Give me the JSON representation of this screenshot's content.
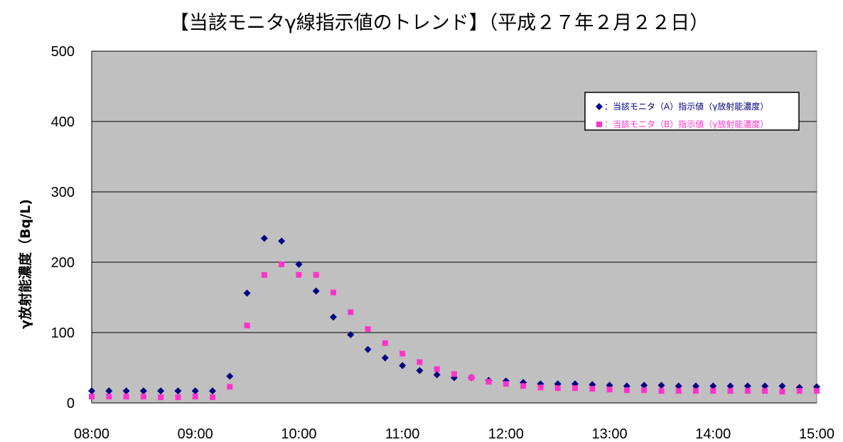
{
  "chart_data": {
    "type": "scatter",
    "title": "【当該モニタγ線指示値のトレンド】（平成２７年２月２２日）",
    "xlabel": "",
    "ylabel": "γ放射能濃度（Bq/L)",
    "ylim": [
      0,
      500
    ],
    "yticks": [
      0,
      100,
      200,
      300,
      400,
      500
    ],
    "xlim": [
      "08:00",
      "15:00"
    ],
    "xticks": [
      "08:00",
      "09:00",
      "10:00",
      "11:00",
      "12:00",
      "13:00",
      "14:00",
      "15:00"
    ],
    "grid": "horizontal",
    "legend_position": "top-right",
    "background": "#c0c0c0",
    "x": [
      "08:00",
      "08:10",
      "08:20",
      "08:30",
      "08:40",
      "08:50",
      "09:00",
      "09:10",
      "09:20",
      "09:30",
      "09:40",
      "09:50",
      "10:00",
      "10:10",
      "10:20",
      "10:30",
      "10:40",
      "10:50",
      "11:00",
      "11:10",
      "11:20",
      "11:30",
      "11:40",
      "11:50",
      "12:00",
      "12:10",
      "12:20",
      "12:30",
      "12:40",
      "12:50",
      "13:00",
      "13:10",
      "13:20",
      "13:30",
      "13:40",
      "13:50",
      "14:00",
      "14:10",
      "14:20",
      "14:30",
      "14:40",
      "14:50",
      "15:00"
    ],
    "series": [
      {
        "name": "：当該モニタ（A）指示値（γ放射能濃度）",
        "marker": "diamond",
        "color": "#000080",
        "values": [
          17,
          17,
          17,
          17,
          17,
          17,
          17,
          17,
          38,
          156,
          234,
          230,
          197,
          159,
          122,
          97,
          76,
          64,
          53,
          46,
          40,
          36,
          36,
          32,
          31,
          29,
          27,
          27,
          27,
          26,
          25,
          24,
          25,
          25,
          24,
          24,
          24,
          24,
          24,
          24,
          24,
          22,
          23
        ]
      },
      {
        "name": "：当該モニタ（B）指示値（γ放射能濃度）",
        "marker": "square",
        "color": "#ff33cc",
        "values": [
          9,
          9,
          9,
          9,
          8,
          8,
          9,
          8,
          23,
          110,
          182,
          197,
          182,
          182,
          157,
          129,
          105,
          85,
          70,
          58,
          48,
          41,
          36,
          30,
          27,
          24,
          22,
          21,
          21,
          20,
          19,
          18,
          18,
          17,
          17,
          17,
          17,
          17,
          17,
          17,
          16,
          17,
          17
        ]
      }
    ]
  }
}
